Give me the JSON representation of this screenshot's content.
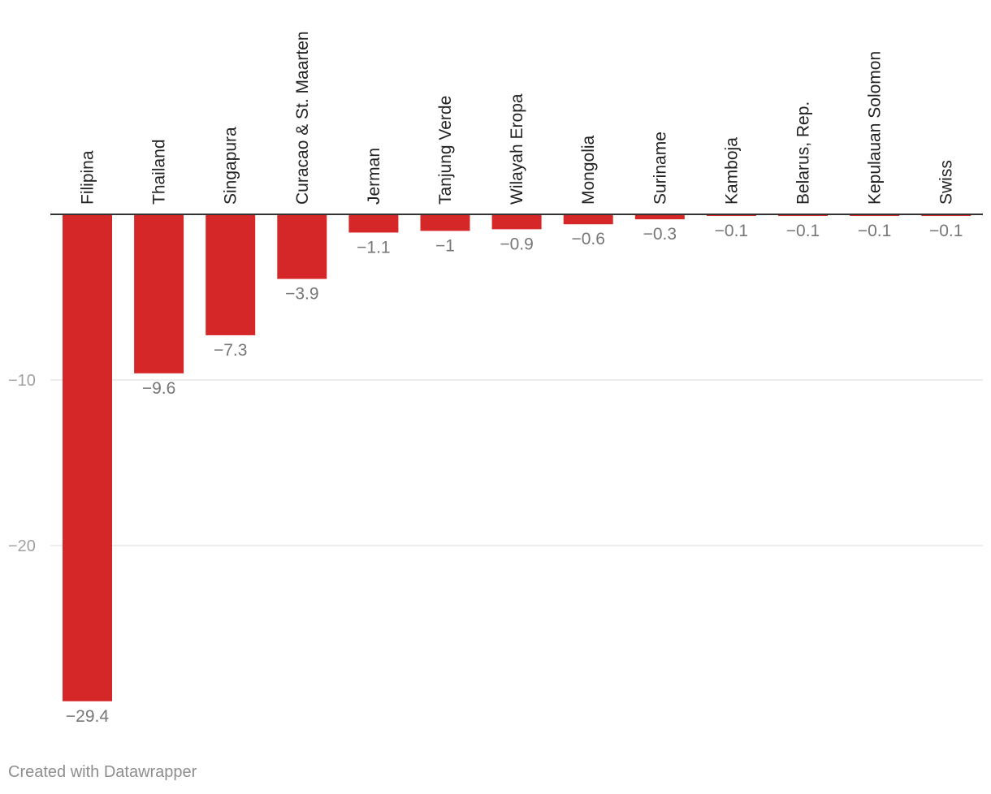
{
  "chart_data": {
    "type": "bar",
    "categories": [
      "Filipina",
      "Thailand",
      "Singapura",
      "Curacao & St. Maarten",
      "Jerman",
      "Tanjung Verde",
      "Wilayah Eropa",
      "Mongolia",
      "Suriname",
      "Kamboja",
      "Belarus, Rep.",
      "Kepulauan Solomon",
      "Swiss"
    ],
    "values": [
      -29.4,
      -9.6,
      -7.3,
      -3.9,
      -1.1,
      -1,
      -0.9,
      -0.6,
      -0.3,
      -0.1,
      -0.1,
      -0.1,
      -0.1
    ],
    "value_labels": [
      "−29.4",
      "−9.6",
      "−7.3",
      "−3.9",
      "−1.1",
      "−1",
      "−0.9",
      "−0.6",
      "−0.3",
      "−0.1",
      "−0.1",
      "−0.1",
      "−0.1"
    ],
    "yticks": [
      -10,
      -20
    ],
    "ytick_labels": [
      "−10",
      "−20"
    ],
    "ylim": [
      -29.4,
      0
    ],
    "grid": true,
    "bar_color": "#d62728",
    "title": "",
    "xlabel": "",
    "ylabel": ""
  },
  "footer": {
    "credit": "Created with Datawrapper"
  }
}
